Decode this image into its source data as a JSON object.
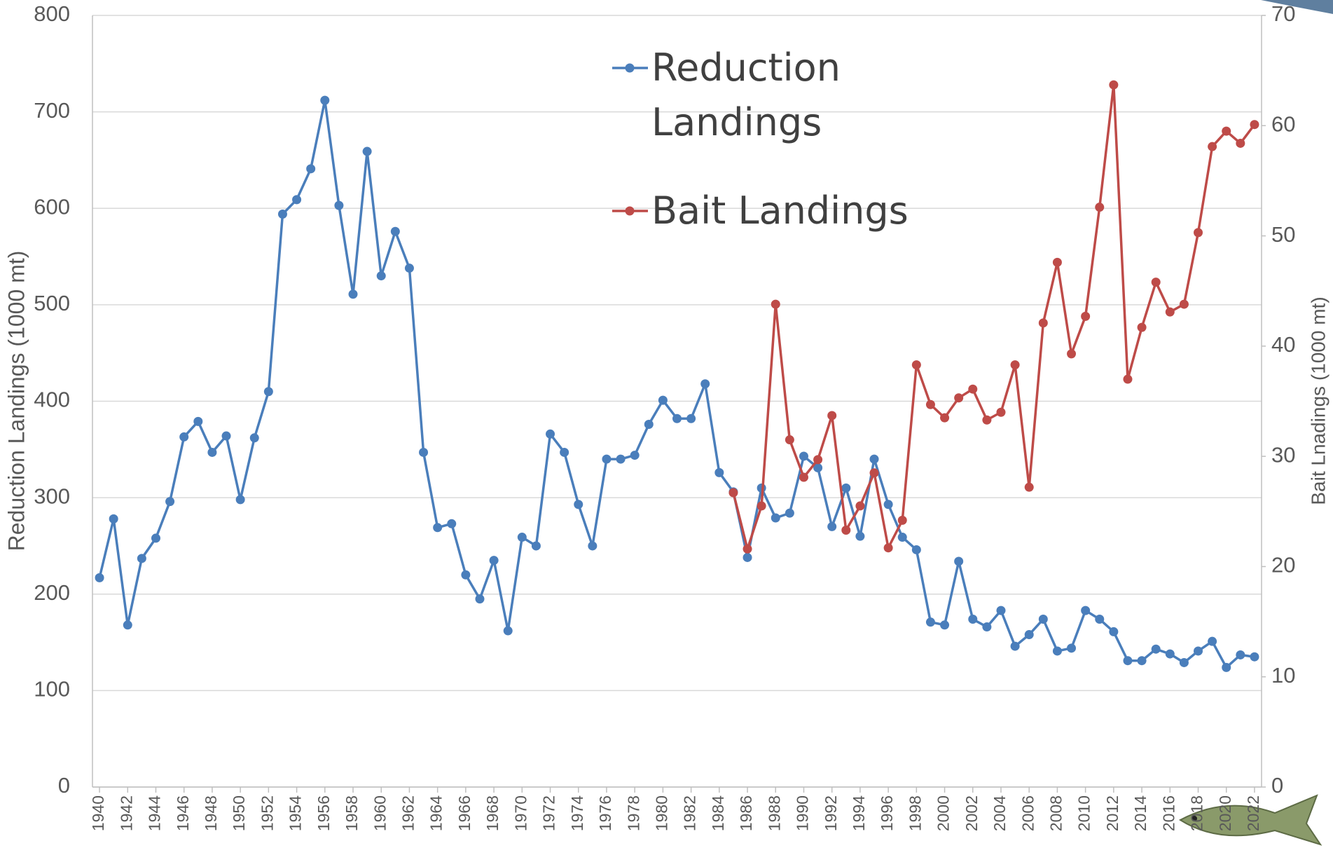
{
  "chart_data": {
    "type": "line",
    "x": [
      1940,
      1941,
      1942,
      1943,
      1944,
      1945,
      1946,
      1947,
      1948,
      1949,
      1950,
      1951,
      1952,
      1953,
      1954,
      1955,
      1956,
      1957,
      1958,
      1959,
      1960,
      1961,
      1962,
      1963,
      1964,
      1965,
      1966,
      1967,
      1968,
      1969,
      1970,
      1971,
      1972,
      1973,
      1974,
      1975,
      1976,
      1977,
      1978,
      1979,
      1980,
      1981,
      1982,
      1983,
      1984,
      1985,
      1986,
      1987,
      1988,
      1989,
      1990,
      1991,
      1992,
      1993,
      1994,
      1995,
      1996,
      1997,
      1998,
      1999,
      2000,
      2001,
      2002,
      2003,
      2004,
      2005,
      2006,
      2007,
      2008,
      2009,
      2010,
      2011,
      2012,
      2013,
      2014,
      2015,
      2016,
      2017,
      2018,
      2019,
      2020,
      2021,
      2022
    ],
    "series": [
      {
        "name": "Reduction Landings",
        "color": "#4a7ebb",
        "values": [
          217,
          278,
          168,
          237,
          258,
          296,
          363,
          379,
          347,
          364,
          298,
          362,
          410,
          594,
          609,
          641,
          712,
          603,
          511,
          659,
          530,
          576,
          538,
          347,
          269,
          273,
          220,
          195,
          235,
          162,
          259,
          250,
          366,
          347,
          293,
          250,
          340,
          340,
          344,
          376,
          401,
          382,
          382,
          418,
          326,
          306,
          238,
          310,
          279,
          284,
          343,
          331,
          270,
          310,
          260,
          340,
          293,
          259,
          246,
          171,
          168,
          234,
          174,
          166,
          183,
          146,
          158,
          174,
          141,
          144,
          183,
          174,
          161,
          131,
          131,
          143,
          138,
          129,
          141,
          151,
          124,
          137,
          135
        ]
      },
      {
        "name": "Bait Landings",
        "color": "#be4b48",
        "axis": "y2",
        "values": [
          null,
          null,
          null,
          null,
          null,
          null,
          null,
          null,
          null,
          null,
          null,
          null,
          null,
          null,
          null,
          null,
          null,
          null,
          null,
          null,
          null,
          null,
          null,
          null,
          null,
          null,
          null,
          null,
          null,
          null,
          null,
          null,
          null,
          null,
          null,
          null,
          null,
          null,
          null,
          null,
          null,
          null,
          null,
          null,
          null,
          26.7,
          21.6,
          25.5,
          43.8,
          31.5,
          28.1,
          29.7,
          33.7,
          23.3,
          25.5,
          28.5,
          21.7,
          24.2,
          38.3,
          34.7,
          33.5,
          35.3,
          36.1,
          33.3,
          34.0,
          38.3,
          27.2,
          42.1,
          47.6,
          39.3,
          42.7,
          52.6,
          63.7,
          37.0,
          41.7,
          45.8,
          43.1,
          43.8,
          50.3,
          58.1,
          59.5,
          58.4,
          60.1
        ]
      }
    ],
    "ylabel": "Reduction Landings (1000 mt)",
    "y2label": "Bait Lnadings (1000 mt)",
    "xlim": [
      1939.5,
      2022.5
    ],
    "xticks": [
      1940,
      1942,
      1944,
      1946,
      1948,
      1950,
      1952,
      1954,
      1956,
      1958,
      1960,
      1962,
      1964,
      1966,
      1968,
      1970,
      1972,
      1974,
      1976,
      1978,
      1980,
      1982,
      1984,
      1986,
      1988,
      1990,
      1992,
      1994,
      1996,
      1998,
      2000,
      2002,
      2004,
      2006,
      2008,
      2010,
      2012,
      2014,
      2016,
      2018,
      2020,
      2022
    ],
    "ylim": [
      0,
      800
    ],
    "yticks": [
      0,
      100,
      200,
      300,
      400,
      500,
      600,
      700,
      800
    ],
    "y2lim": [
      0,
      70
    ],
    "y2ticks": [
      0,
      10,
      20,
      30,
      40,
      50,
      60,
      70
    ],
    "grid": true
  }
}
